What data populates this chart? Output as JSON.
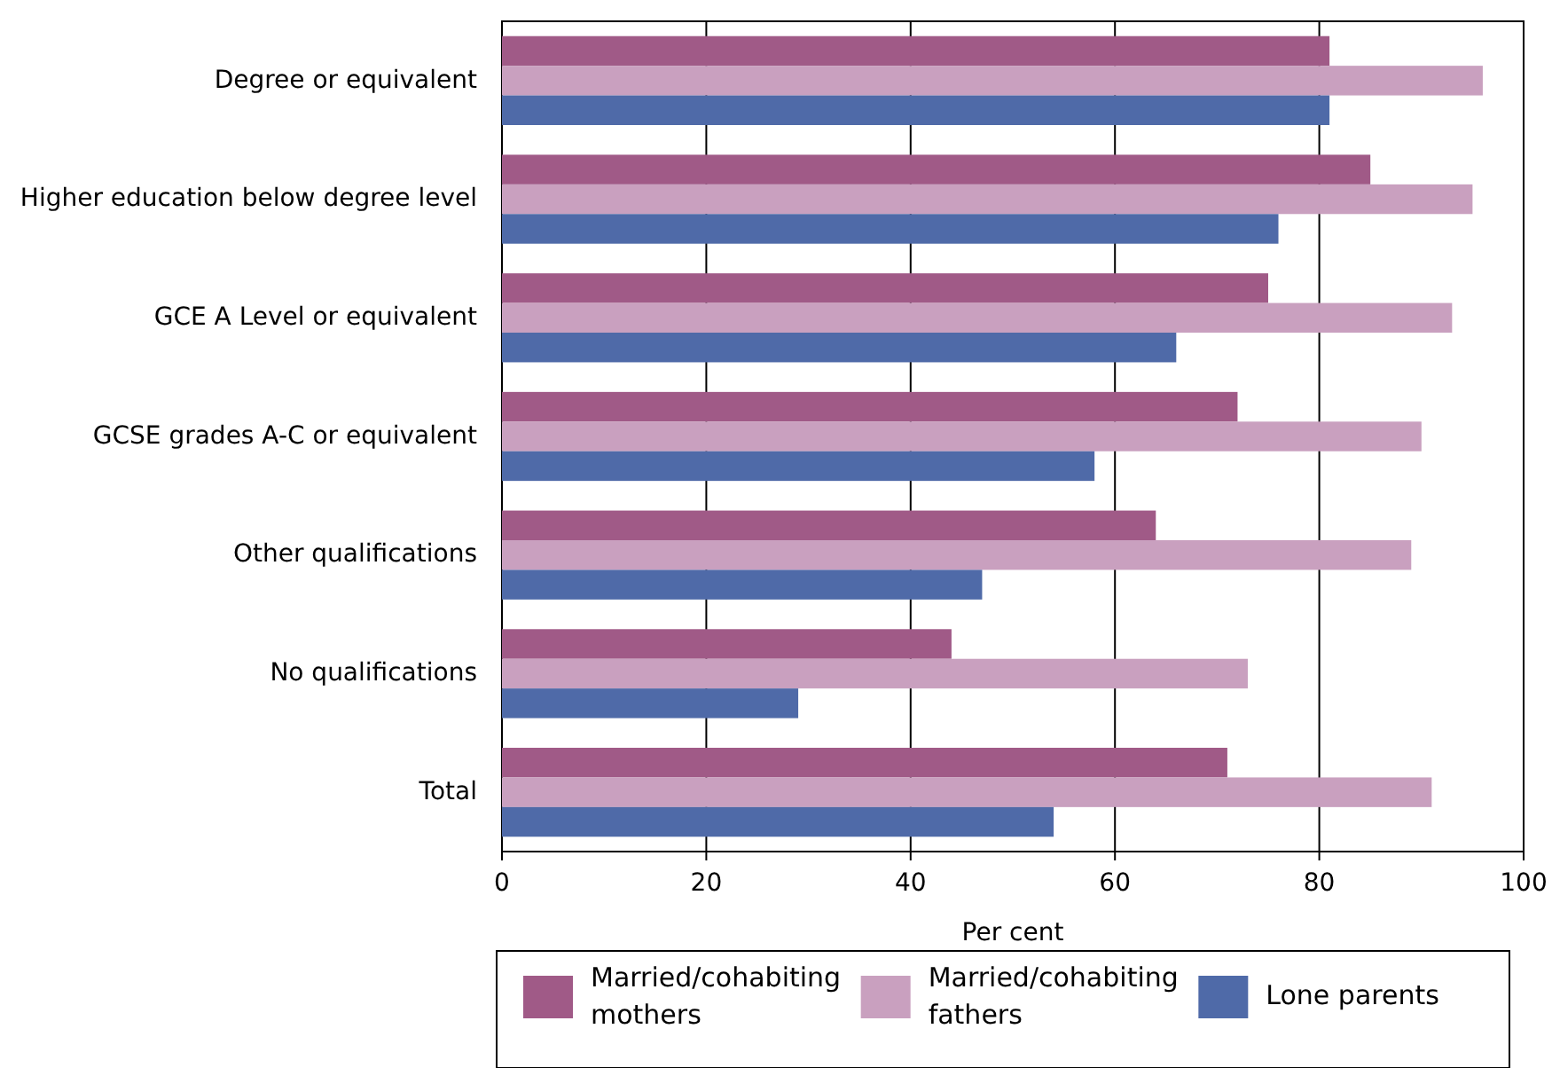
{
  "chart_data": {
    "type": "bar",
    "orientation": "horizontal",
    "xlabel": "Per cent",
    "categories": [
      "Degree or equivalent",
      "Higher education below degree level",
      "GCE A Level or equivalent",
      "GCSE grades A-C or equivalent",
      "Other qualifications",
      "No qualifications",
      "Total"
    ],
    "series": [
      {
        "name": "Married/cohabiting mothers",
        "color": "#a05a87",
        "values": [
          81,
          85,
          75,
          72,
          64,
          44,
          71
        ]
      },
      {
        "name": "Married/cohabiting fathers",
        "color": "#c9a0bf",
        "values": [
          96,
          95,
          93,
          90,
          89,
          73,
          91
        ]
      },
      {
        "name": "Lone parents",
        "color": "#4f6aa8",
        "values": [
          81,
          76,
          66,
          58,
          47,
          29,
          54
        ]
      }
    ],
    "xlim": [
      0,
      100
    ],
    "xticks": [
      0,
      20,
      40,
      60,
      80,
      100
    ],
    "grid": "x",
    "legend": "bottom"
  }
}
